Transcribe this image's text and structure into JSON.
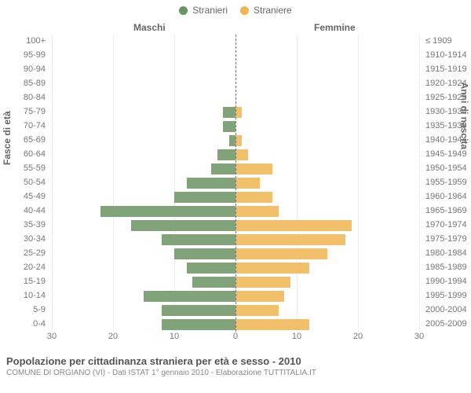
{
  "legend": {
    "male": {
      "label": "Stranieri",
      "color": "#6b9362"
    },
    "female": {
      "label": "Straniere",
      "color": "#f0b450"
    }
  },
  "column_headers": {
    "male": "Maschi",
    "female": "Femmine"
  },
  "y_titles": {
    "left": "Fasce di età",
    "right": "Anni di nascita"
  },
  "chart": {
    "type": "population-pyramid",
    "bar_colors": {
      "male": "#6b9362",
      "female": "#f0b450"
    },
    "background_color": "#ffffff",
    "grid_color": "#eeeeee",
    "center_line_color": "#777777",
    "label_fontsize": 11,
    "title_fontsize": 12,
    "x_max": 30,
    "x_ticks_left": [
      30,
      20,
      10,
      0
    ],
    "x_ticks_right": [
      0,
      10,
      20,
      30
    ],
    "rows": [
      {
        "age": "100+",
        "birth": "≤ 1909",
        "m": 0,
        "f": 0
      },
      {
        "age": "95-99",
        "birth": "1910-1914",
        "m": 0,
        "f": 0
      },
      {
        "age": "90-94",
        "birth": "1915-1919",
        "m": 0,
        "f": 0
      },
      {
        "age": "85-89",
        "birth": "1920-1924",
        "m": 0,
        "f": 0
      },
      {
        "age": "80-84",
        "birth": "1925-1929",
        "m": 0,
        "f": 0
      },
      {
        "age": "75-79",
        "birth": "1930-1934",
        "m": 2,
        "f": 1
      },
      {
        "age": "70-74",
        "birth": "1935-1939",
        "m": 2,
        "f": 0
      },
      {
        "age": "65-69",
        "birth": "1940-1944",
        "m": 1,
        "f": 1
      },
      {
        "age": "60-64",
        "birth": "1945-1949",
        "m": 3,
        "f": 2
      },
      {
        "age": "55-59",
        "birth": "1950-1954",
        "m": 4,
        "f": 6
      },
      {
        "age": "50-54",
        "birth": "1955-1959",
        "m": 8,
        "f": 4
      },
      {
        "age": "45-49",
        "birth": "1960-1964",
        "m": 10,
        "f": 6
      },
      {
        "age": "40-44",
        "birth": "1965-1969",
        "m": 22,
        "f": 7
      },
      {
        "age": "35-39",
        "birth": "1970-1974",
        "m": 17,
        "f": 19
      },
      {
        "age": "30-34",
        "birth": "1975-1979",
        "m": 12,
        "f": 18
      },
      {
        "age": "25-29",
        "birth": "1980-1984",
        "m": 10,
        "f": 15
      },
      {
        "age": "20-24",
        "birth": "1985-1989",
        "m": 8,
        "f": 12
      },
      {
        "age": "15-19",
        "birth": "1990-1994",
        "m": 7,
        "f": 9
      },
      {
        "age": "10-14",
        "birth": "1995-1999",
        "m": 15,
        "f": 8
      },
      {
        "age": "5-9",
        "birth": "2000-2004",
        "m": 12,
        "f": 7
      },
      {
        "age": "0-4",
        "birth": "2005-2009",
        "m": 12,
        "f": 12
      }
    ]
  },
  "footer": {
    "title": "Popolazione per cittadinanza straniera per età e sesso - 2010",
    "subtitle": "COMUNE DI ORGIANO (VI) - Dati ISTAT 1° gennaio 2010 - Elaborazione TUTTITALIA.IT"
  }
}
